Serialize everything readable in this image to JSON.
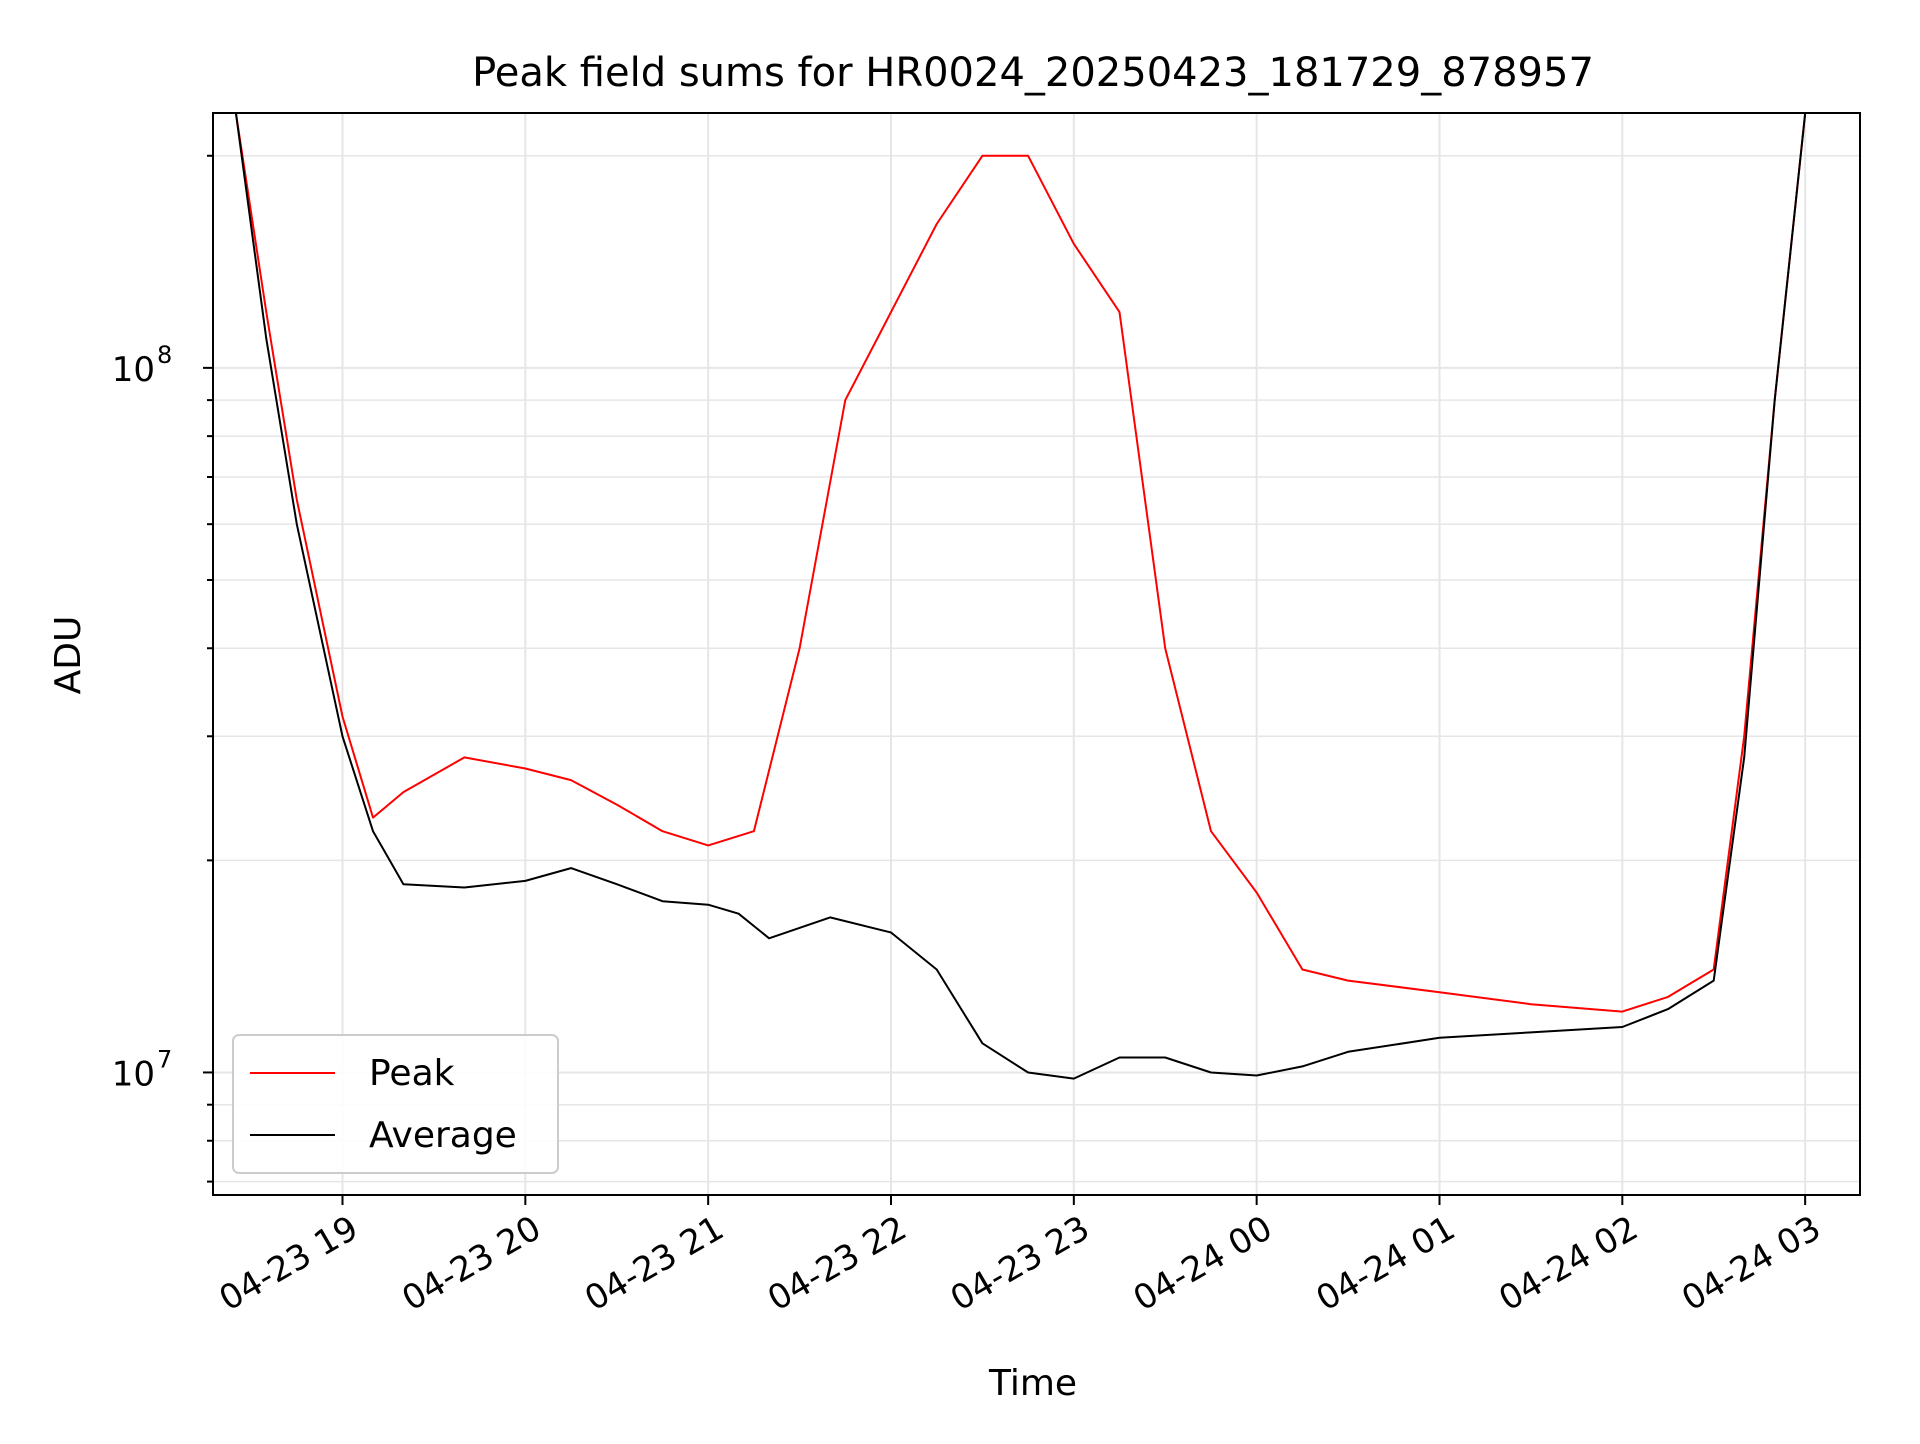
{
  "chart_data": {
    "type": "line",
    "title": "Peak field sums for HR0024_20250423_181729_878957",
    "xlabel": "Time",
    "ylabel": "ADU",
    "yscale": "log",
    "ylim": [
      6700000,
      230000000
    ],
    "xlim": [
      "2025-04-23 18:17:30",
      "2025-04-24 03:18:00"
    ],
    "grid": true,
    "legend_position": "lower-left",
    "x_ticks": [
      {
        "value": "2025-04-23 19:00",
        "label": "04-23 19"
      },
      {
        "value": "2025-04-23 20:00",
        "label": "04-23 20"
      },
      {
        "value": "2025-04-23 21:00",
        "label": "04-23 21"
      },
      {
        "value": "2025-04-23 22:00",
        "label": "04-23 22"
      },
      {
        "value": "2025-04-23 23:00",
        "label": "04-23 23"
      },
      {
        "value": "2025-04-24 00:00",
        "label": "04-24 00"
      },
      {
        "value": "2025-04-24 01:00",
        "label": "04-24 01"
      },
      {
        "value": "2025-04-24 02:00",
        "label": "04-24 02"
      },
      {
        "value": "2025-04-24 03:00",
        "label": "04-24 03"
      }
    ],
    "y_ticks": [
      {
        "value": 10000000,
        "label": "10",
        "exponent": "7"
      },
      {
        "value": 100000000,
        "label": "10",
        "exponent": "8"
      }
    ],
    "series": [
      {
        "name": "Peak",
        "color": "#ff0000",
        "x": [
          "2025-04-23 18:17:30",
          "2025-04-23 18:25:00",
          "2025-04-23 18:35:00",
          "2025-04-23 18:45:00",
          "2025-04-23 19:00:00",
          "2025-04-23 19:10:00",
          "2025-04-23 19:20:00",
          "2025-04-23 19:40:00",
          "2025-04-23 20:00:00",
          "2025-04-23 20:15:00",
          "2025-04-23 20:30:00",
          "2025-04-23 20:45:00",
          "2025-04-23 21:00:00",
          "2025-04-23 21:15:00",
          "2025-04-23 21:30:00",
          "2025-04-23 21:45:00",
          "2025-04-23 22:00:00",
          "2025-04-23 22:15:00",
          "2025-04-23 22:30:00",
          "2025-04-23 22:45:00",
          "2025-04-23 23:00:00",
          "2025-04-23 23:15:00",
          "2025-04-23 23:30:00",
          "2025-04-23 23:45:00",
          "2025-04-24 00:00:00",
          "2025-04-24 00:15:00",
          "2025-04-24 00:30:00",
          "2025-04-24 01:00:00",
          "2025-04-24 01:30:00",
          "2025-04-24 02:00:00",
          "2025-04-24 02:15:00",
          "2025-04-24 02:30:00",
          "2025-04-24 02:40:00",
          "2025-04-24 02:50:00",
          "2025-04-24 03:00:00",
          "2025-04-24 03:18:00"
        ],
        "values": [
          230000000,
          230000000,
          120000000,
          65000000,
          32000000,
          23000000,
          25000000,
          28000000,
          27000000,
          26000000,
          24000000,
          22000000,
          21000000,
          22000000,
          40000000,
          90000000,
          120000000,
          160000000,
          200000000,
          200000000,
          150000000,
          120000000,
          40000000,
          22000000,
          18000000,
          14000000,
          13500000,
          13000000,
          12500000,
          12200000,
          12800000,
          14000000,
          30000000,
          90000000,
          230000000,
          230000000
        ]
      },
      {
        "name": "Average",
        "color": "#000000",
        "x": [
          "2025-04-23 18:17:30",
          "2025-04-23 18:25:00",
          "2025-04-23 18:35:00",
          "2025-04-23 18:45:00",
          "2025-04-23 19:00:00",
          "2025-04-23 19:10:00",
          "2025-04-23 19:20:00",
          "2025-04-23 19:40:00",
          "2025-04-23 20:00:00",
          "2025-04-23 20:15:00",
          "2025-04-23 20:30:00",
          "2025-04-23 20:45:00",
          "2025-04-23 21:00:00",
          "2025-04-23 21:10:00",
          "2025-04-23 21:20:00",
          "2025-04-23 21:40:00",
          "2025-04-23 22:00:00",
          "2025-04-23 22:15:00",
          "2025-04-23 22:30:00",
          "2025-04-23 22:45:00",
          "2025-04-23 23:00:00",
          "2025-04-23 23:15:00",
          "2025-04-23 23:30:00",
          "2025-04-23 23:45:00",
          "2025-04-24 00:00:00",
          "2025-04-24 00:15:00",
          "2025-04-24 00:30:00",
          "2025-04-24 01:00:00",
          "2025-04-24 01:30:00",
          "2025-04-24 02:00:00",
          "2025-04-24 02:15:00",
          "2025-04-24 02:30:00",
          "2025-04-24 02:40:00",
          "2025-04-24 02:50:00",
          "2025-04-24 03:00:00",
          "2025-04-24 03:18:00"
        ],
        "values": [
          230000000,
          230000000,
          110000000,
          60000000,
          30000000,
          22000000,
          18500000,
          18300000,
          18700000,
          19500000,
          18500000,
          17500000,
          17300000,
          16800000,
          15500000,
          16600000,
          15800000,
          14000000,
          11000000,
          10000000,
          9800000,
          10500000,
          10500000,
          10000000,
          9900000,
          10200000,
          10700000,
          11200000,
          11400000,
          11600000,
          12300000,
          13500000,
          28000000,
          90000000,
          230000000,
          230000000
        ]
      }
    ]
  }
}
